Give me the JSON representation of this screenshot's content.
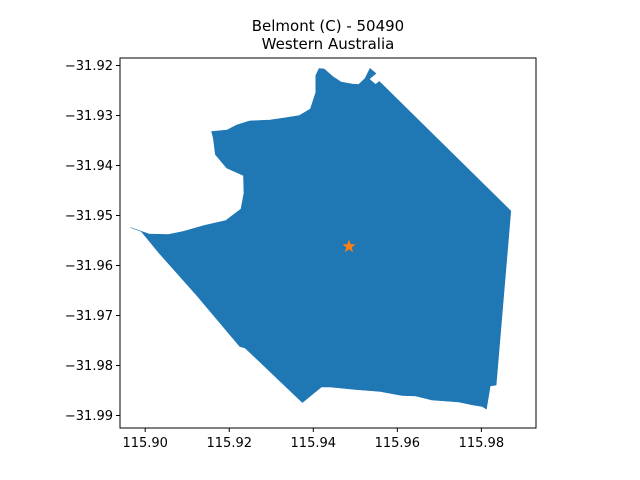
{
  "figure": {
    "title_line1": "Belmont (C) - 50490",
    "title_line2": "Western Australia"
  },
  "colors": {
    "region_fill": "#1f77b4",
    "marker": "#ff7f0e",
    "axes": "#000000",
    "background": "#ffffff"
  },
  "chart_data": {
    "type": "map",
    "title": "Belmont (C) - 50490\nWestern Australia",
    "xlim": [
      115.894,
      115.993
    ],
    "ylim": [
      -31.9925,
      -31.9185
    ],
    "grid": false,
    "x_ticks": [
      {
        "value": 115.9,
        "label": "115.90"
      },
      {
        "value": 115.92,
        "label": "115.92"
      },
      {
        "value": 115.94,
        "label": "115.94"
      },
      {
        "value": 115.96,
        "label": "115.96"
      },
      {
        "value": 115.98,
        "label": "115.98"
      }
    ],
    "y_ticks": [
      {
        "value": -31.92,
        "label": "−31.92"
      },
      {
        "value": -31.93,
        "label": "−31.93"
      },
      {
        "value": -31.94,
        "label": "−31.94"
      },
      {
        "value": -31.95,
        "label": "−31.95"
      },
      {
        "value": -31.96,
        "label": "−31.96"
      },
      {
        "value": -31.97,
        "label": "−31.97"
      },
      {
        "value": -31.98,
        "label": "−31.98"
      },
      {
        "value": -31.99,
        "label": "−31.99"
      }
    ],
    "region_boundary": [
      [
        115.9414,
        -31.9206
      ],
      [
        115.9426,
        -31.9207
      ],
      [
        115.9446,
        -31.9222
      ],
      [
        115.9466,
        -31.9233
      ],
      [
        115.9492,
        -31.9237
      ],
      [
        115.9508,
        -31.9238
      ],
      [
        115.9523,
        -31.9226
      ],
      [
        115.9535,
        -31.9206
      ],
      [
        115.9549,
        -31.9216
      ],
      [
        115.9533,
        -31.9227
      ],
      [
        115.9548,
        -31.9238
      ],
      [
        115.9557,
        -31.9232
      ],
      [
        115.987,
        -31.9491
      ],
      [
        115.9835,
        -31.9839
      ],
      [
        115.9821,
        -31.9841
      ],
      [
        115.9812,
        -31.9887
      ],
      [
        115.9802,
        -31.9882
      ],
      [
        115.978,
        -31.9879
      ],
      [
        115.9746,
        -31.9873
      ],
      [
        115.9682,
        -31.9869
      ],
      [
        115.9644,
        -31.9861
      ],
      [
        115.9611,
        -31.986
      ],
      [
        115.956,
        -31.9852
      ],
      [
        115.95,
        -31.9848
      ],
      [
        115.944,
        -31.9843
      ],
      [
        115.9419,
        -31.9843
      ],
      [
        115.9374,
        -31.9874
      ],
      [
        115.9238,
        -31.9765
      ],
      [
        115.9225,
        -31.9762
      ],
      [
        115.9124,
        -31.9661
      ],
      [
        115.9034,
        -31.9576
      ],
      [
        115.8991,
        -31.9532
      ],
      [
        115.8965,
        -31.9524
      ],
      [
        115.9009,
        -31.9537
      ],
      [
        115.9055,
        -31.9538
      ],
      [
        115.909,
        -31.9532
      ],
      [
        115.914,
        -31.952
      ],
      [
        115.9192,
        -31.951
      ],
      [
        115.9228,
        -31.9487
      ],
      [
        115.9235,
        -31.9455
      ],
      [
        115.9234,
        -31.942
      ],
      [
        115.9194,
        -31.9405
      ],
      [
        115.9167,
        -31.9378
      ],
      [
        115.9162,
        -31.9345
      ],
      [
        115.9158,
        -31.9332
      ],
      [
        115.9195,
        -31.9329
      ],
      [
        115.9218,
        -31.9319
      ],
      [
        115.9248,
        -31.9311
      ],
      [
        115.9297,
        -31.9309
      ],
      [
        115.933,
        -31.9305
      ],
      [
        115.9367,
        -31.93
      ],
      [
        115.9393,
        -31.9287
      ],
      [
        115.9406,
        -31.9254
      ],
      [
        115.9406,
        -31.922
      ]
    ],
    "markers": [
      {
        "type": "star",
        "lon": 115.9485,
        "lat": -31.9562
      }
    ]
  }
}
